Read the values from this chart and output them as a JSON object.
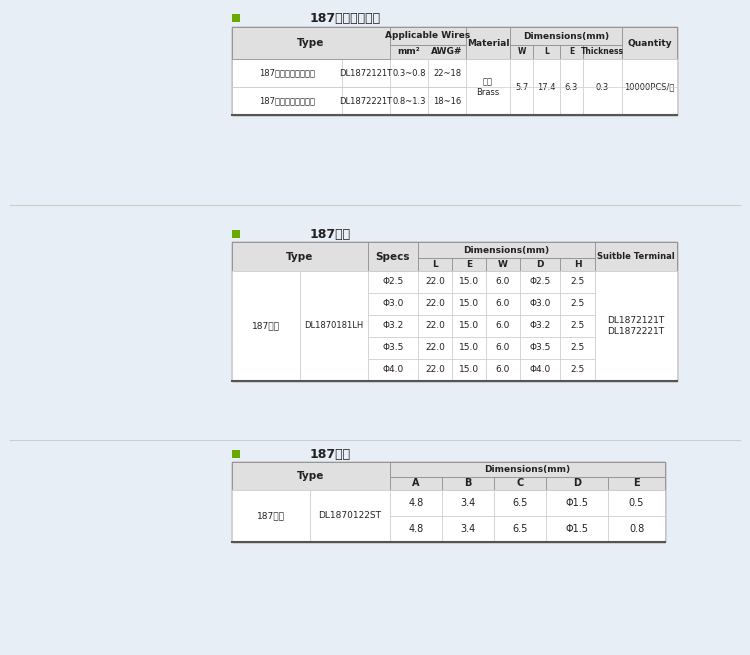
{
  "bg_color": "#e8eef5",
  "table_bg": "#ffffff",
  "header_bg": "#d8d8d8",
  "border_color": "#aaaaaa",
  "text_color": "#222222",
  "accent_color": "#6aaa00",
  "section1_title": "187直插带锁端子",
  "section1_headers_row1": [
    "Type",
    "Applicable Wires",
    "",
    "Material",
    "Dimensions(mm)",
    "",
    "",
    "",
    "Quantity"
  ],
  "section1_headers_row2": [
    "",
    "mm²",
    "AWG#",
    "",
    "W",
    "L",
    "E",
    "Thickness",
    ""
  ],
  "section1_rows": [
    [
      "187直插带锁低脚端子",
      "DL1872121T",
      "0.3~0.8",
      "22~18",
      "黄铜\nBrass",
      "5.7",
      "17.4",
      "6.3",
      "0.3",
      "10000PCS/盒"
    ],
    [
      "187直插带锁中脚端子",
      "DL1872221T",
      "0.8~1.3",
      "18~16",
      "",
      "",
      "",
      "",
      "",
      ""
    ]
  ],
  "section2_title": "187直软",
  "section2_headers_row1": [
    "Type",
    "",
    "Specs",
    "Dimensions(mm)",
    "",
    "",
    "",
    "",
    "Suitble Terminal"
  ],
  "section2_headers_row2": [
    "",
    "",
    "",
    "L",
    "E",
    "W",
    "D",
    "H",
    ""
  ],
  "section2_rows": [
    [
      "187直软",
      "DL1870181LH",
      "Φ2.5",
      "22.0",
      "15.0",
      "6.0",
      "Φ2.5",
      "2.5",
      "DL1872121T\nDL1872221T"
    ],
    [
      "",
      "",
      "Φ3.0",
      "22.0",
      "15.0",
      "6.0",
      "Φ3.0",
      "2.5",
      ""
    ],
    [
      "",
      "",
      "Φ3.2",
      "22.0",
      "15.0",
      "6.0",
      "Φ3.2",
      "2.5",
      ""
    ],
    [
      "",
      "",
      "Φ3.5",
      "22.0",
      "15.0",
      "6.0",
      "Φ3.5",
      "2.5",
      ""
    ],
    [
      "",
      "",
      "Φ4.0",
      "22.0",
      "15.0",
      "6.0",
      "Φ4.0",
      "2.5",
      ""
    ]
  ],
  "section3_title": "187插片",
  "section3_headers_row1": [
    "Type",
    "",
    "Dimensions(mm)",
    "",
    "",
    "",
    ""
  ],
  "section3_headers_row2": [
    "",
    "",
    "A",
    "B",
    "C",
    "D",
    "E"
  ],
  "section3_rows": [
    [
      "187插片",
      "DL1870122ST",
      "4.8",
      "3.4",
      "6.5",
      "Φ1.5",
      "0.5"
    ],
    [
      "",
      "",
      "4.8",
      "3.4",
      "6.5",
      "Φ1.5",
      "0.8"
    ]
  ]
}
